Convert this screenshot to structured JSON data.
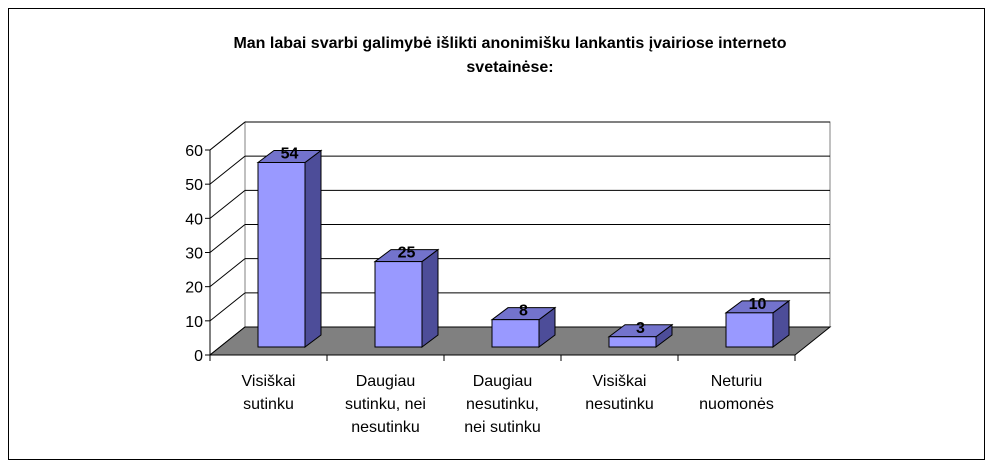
{
  "chart_data": {
    "type": "bar3d",
    "title": "Man labai svarbi galimybė išlikti anonimišku lankantis įvairiose interneto\nsvetainėse:",
    "categories": [
      "Visiškai\nsutinku",
      "Daugiau\nsutinku, nei\nnesutinku",
      "Daugiau\nnesutinku,\nnei sutinku",
      "Visiškai\nnesutinku",
      "Neturiu\nnuomonės"
    ],
    "values": [
      54,
      25,
      8,
      3,
      10
    ],
    "color": "#9999ff",
    "ylim": [
      0,
      60
    ],
    "yticks": [
      0,
      10,
      20,
      30,
      40,
      50,
      60
    ],
    "grid": true
  }
}
